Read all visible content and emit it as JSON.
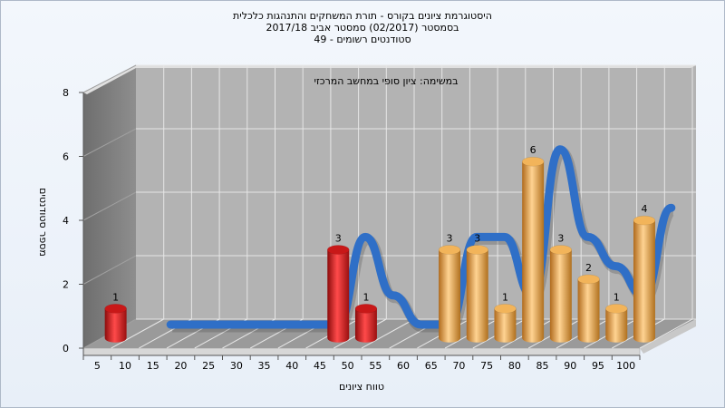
{
  "chart_data": {
    "type": "bar",
    "title_lines": [
      "היסטוגרמת ציונים בקורס - תורת המשחקים והתנהגות כלכלית",
      "בסמסטר  (02/2017)  סמסטר אביב 2017/18",
      "סטודנטים רשומים - 49"
    ],
    "subtitle": "במשימה: ציון סופי במחשב המרכזי",
    "xlabel": "טווח ציונים",
    "ylabel": "מספר סטודנטים",
    "categories": [
      "5",
      "10",
      "15",
      "20",
      "25",
      "30",
      "35",
      "40",
      "45",
      "50",
      "55",
      "60",
      "65",
      "70",
      "75",
      "80",
      "85",
      "90",
      "95",
      "100"
    ],
    "values": [
      1,
      0,
      0,
      0,
      0,
      0,
      0,
      0,
      3,
      1,
      0,
      0,
      3,
      3,
      1,
      6,
      3,
      2,
      1,
      4
    ],
    "bar_colors": [
      "red",
      "red",
      "red",
      "red",
      "red",
      "red",
      "red",
      "red",
      "red",
      "red",
      "orange",
      "orange",
      "orange",
      "orange",
      "orange",
      "orange",
      "orange",
      "orange",
      "orange",
      "orange"
    ],
    "ylim": [
      0,
      8
    ],
    "yticks": [
      0,
      2,
      4,
      6,
      8
    ],
    "grid": true,
    "trend_line": true,
    "colors": {
      "fail": "#e02020",
      "pass": "#e6a34a",
      "trend_grey": "#777777",
      "trend_blue": "#2f6fc7",
      "wall": "#b3b3b3",
      "side_wall": "#828282",
      "floor": "#9a9a9a"
    }
  }
}
